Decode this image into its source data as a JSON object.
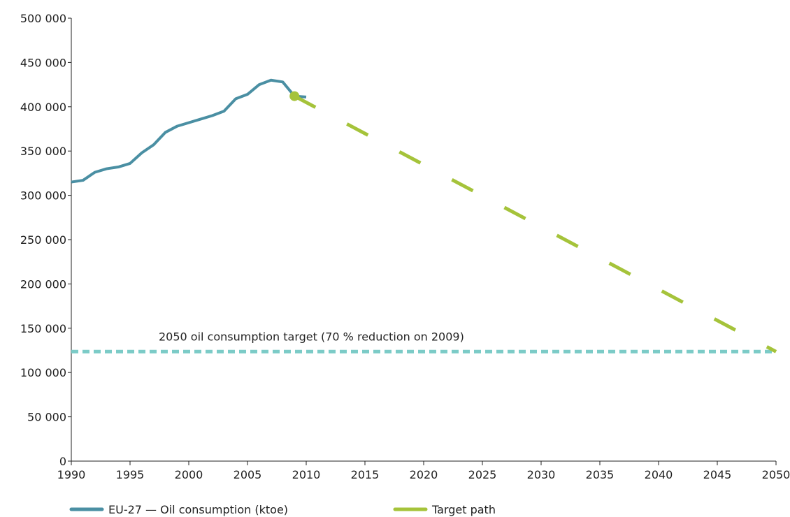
{
  "chart_data": {
    "type": "line",
    "x_ticks": [
      "1990",
      "1995",
      "2000",
      "2005",
      "2010",
      "2015",
      "2020",
      "2025",
      "2030",
      "2035",
      "2040",
      "2045",
      "2050"
    ],
    "y_ticks": [
      "0",
      "50 000",
      "100 000",
      "150 000",
      "200 000",
      "250 000",
      "300 000",
      "350 000",
      "400 000",
      "450 000",
      "500 000"
    ],
    "xlim": [
      1990,
      2050
    ],
    "ylim": [
      0,
      500000
    ],
    "grid": false,
    "legend_position": "bottom-left",
    "series": [
      {
        "name": "EU-27 — Oil consumption (ktoe)",
        "color": "#4a8fa3",
        "style": "solid",
        "x": [
          1990,
          1991,
          1992,
          1993,
          1994,
          1995,
          1996,
          1997,
          1998,
          1999,
          2000,
          2001,
          2002,
          2003,
          2004,
          2005,
          2006,
          2007,
          2008,
          2009,
          2010
        ],
        "y": [
          315000,
          317000,
          326000,
          330000,
          332000,
          336000,
          348000,
          357000,
          371000,
          378000,
          382000,
          386000,
          390000,
          395000,
          409000,
          414000,
          425000,
          430000,
          428000,
          412000,
          411000
        ]
      },
      {
        "name": "Target path",
        "color": "#a5c33a",
        "style": "dashed",
        "x": [
          2009,
          2050
        ],
        "y": [
          412000,
          123600
        ]
      }
    ],
    "reference_line": {
      "label": "2050 oil consumption target (70 % reduction on 2009)",
      "y": 123600,
      "color": "#7ccbc7",
      "style": "dotted"
    },
    "marker": {
      "x": 2009,
      "y": 412000,
      "color": "#a5c33a"
    }
  }
}
